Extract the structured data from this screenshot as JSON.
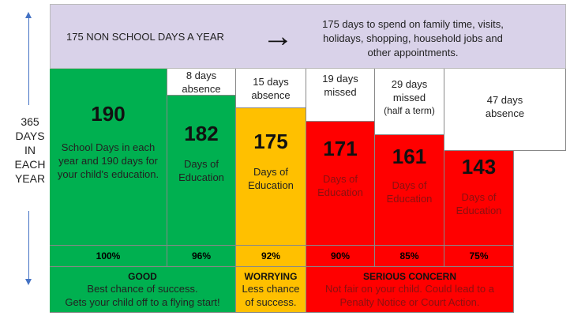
{
  "left_axis": {
    "label_lines": [
      "365",
      "DAYS",
      "IN",
      "EACH",
      "YEAR"
    ]
  },
  "top_band": {
    "left_text": "175 NON SCHOOL DAYS A YEAR",
    "arrow": "→",
    "right_text": "175 days to spend on family time, visits, holidays, shopping, household jobs and other appointments."
  },
  "columns": [
    {
      "header": "",
      "number": "190",
      "desc": "School Days in each year and 190 days for your child's education.",
      "percent": "100%",
      "color": "#00b050"
    },
    {
      "header": "8 days absence",
      "number": "182",
      "desc": "Days of Education",
      "percent": "96%",
      "color": "#00b050"
    },
    {
      "header": "15 days absence",
      "number": "175",
      "desc": "Days of Education",
      "percent": "92%",
      "color": "#ffc000"
    },
    {
      "header": "19 days missed",
      "number": "171",
      "desc": "Days of Education",
      "percent": "90%",
      "color": "#ff0000"
    },
    {
      "header_line1": "29 days",
      "header_line2": "missed",
      "header_line3": "(half a term)",
      "number": "161",
      "desc": "Days of Education",
      "percent": "85%",
      "color": "#ff0000"
    },
    {
      "header": "47 days absence",
      "number": "143",
      "desc": "Days of Education",
      "percent": "75%",
      "color": "#ff0000"
    }
  ],
  "bottom": {
    "good": {
      "title": "GOOD",
      "line1": "Best chance of success.",
      "line2": "Gets your child off to a flying start!"
    },
    "worrying": {
      "title": "WORRYING",
      "line1": "Less chance",
      "line2": "of success."
    },
    "serious": {
      "title": "SERIOUS CONCERN",
      "line1": "Not fair on your child. Could lead to a",
      "line2": "Penalty Notice or Court Action."
    }
  }
}
